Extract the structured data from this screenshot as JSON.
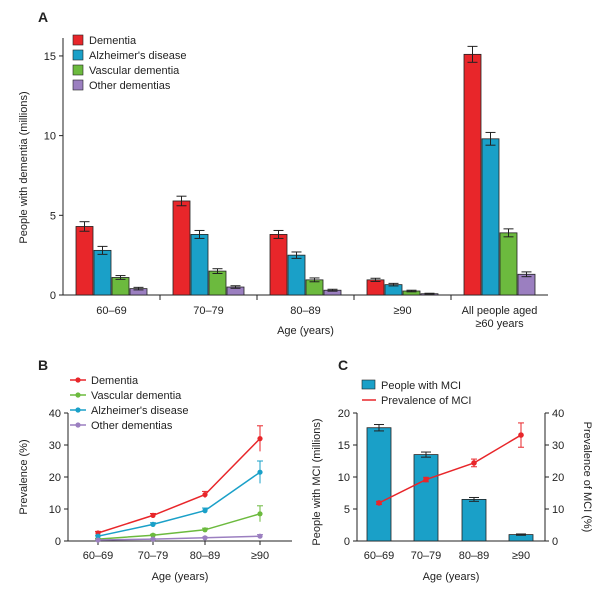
{
  "panel_labels": {
    "a": "A",
    "b": "B",
    "c": "C"
  },
  "colors": {
    "dementia": "#e8262a",
    "alzheimers": "#1aa0c8",
    "vascular": "#6cba3e",
    "other": "#9b7fc0",
    "mci_bar": "#1aa0c8",
    "mci_line": "#e8262a"
  },
  "chart_data": [
    {
      "id": "A",
      "type": "bar",
      "ylabel": "People with dementia (millions)",
      "xlabel": "Age (years)",
      "ylim": [
        0,
        16
      ],
      "yticks": [
        "0",
        "5",
        "10",
        "15"
      ],
      "categories": [
        "60–69",
        "70–79",
        "80–89",
        "≥90",
        "All people aged|≥60 years"
      ],
      "series": [
        {
          "name": "Dementia",
          "values": [
            4.3,
            5.9,
            3.8,
            0.95,
            15.1
          ],
          "errors": [
            0.3,
            0.3,
            0.25,
            0.1,
            0.5
          ]
        },
        {
          "name": "Alzheimer's disease",
          "values": [
            2.8,
            3.8,
            2.5,
            0.65,
            9.8
          ],
          "errors": [
            0.25,
            0.25,
            0.2,
            0.08,
            0.4
          ]
        },
        {
          "name": "Vascular dementia",
          "values": [
            1.1,
            1.5,
            0.95,
            0.25,
            3.9
          ],
          "errors": [
            0.12,
            0.15,
            0.12,
            0.05,
            0.25
          ]
        },
        {
          "name": "Other dementias",
          "values": [
            0.4,
            0.5,
            0.3,
            0.08,
            1.3
          ],
          "errors": [
            0.08,
            0.08,
            0.06,
            0.03,
            0.15
          ]
        }
      ],
      "legend_position": "top-left"
    },
    {
      "id": "B",
      "type": "line",
      "ylabel": "Prevalence (%)",
      "xlabel": "Age (years)",
      "ylim": [
        0,
        40
      ],
      "yticks": [
        "0",
        "10",
        "20",
        "30",
        "40"
      ],
      "categories": [
        "60–69",
        "70–79",
        "80–89",
        "≥90"
      ],
      "series": [
        {
          "name": "Dementia",
          "values": [
            2.5,
            8.0,
            14.5,
            32.0
          ],
          "errors": [
            0.5,
            0.6,
            1.0,
            4.0
          ]
        },
        {
          "name": "Vascular dementia",
          "values": [
            0.6,
            1.8,
            3.5,
            8.5
          ],
          "errors": [
            0.2,
            0.3,
            0.5,
            2.5
          ]
        },
        {
          "name": "Alzheimer's disease",
          "values": [
            1.5,
            5.2,
            9.5,
            21.5
          ],
          "errors": [
            0.3,
            0.5,
            0.8,
            3.5
          ]
        },
        {
          "name": "Other dementias",
          "values": [
            0.3,
            0.6,
            1.0,
            1.5
          ],
          "errors": [
            0.1,
            0.1,
            0.2,
            0.5
          ]
        }
      ],
      "legend_position": "top-left"
    },
    {
      "id": "C",
      "type": "bar",
      "ylabel": "People with MCI (millions)",
      "y2label": "Prevalence of MCI (%)",
      "xlabel": "Age (years)",
      "ylim": [
        0,
        20
      ],
      "y2lim": [
        0,
        40
      ],
      "yticks": [
        "0",
        "5",
        "10",
        "15",
        "20"
      ],
      "y2ticks": [
        "0",
        "10",
        "20",
        "30",
        "40"
      ],
      "categories": [
        "60–69",
        "70–79",
        "80–89",
        "≥90"
      ],
      "bars": {
        "name": "People with MCI",
        "values": [
          17.7,
          13.5,
          6.5,
          1.0
        ],
        "errors": [
          0.5,
          0.4,
          0.3,
          0.1
        ]
      },
      "line": {
        "name": "Prevalence of MCI",
        "values": [
          11.9,
          19.2,
          24.4,
          33.1
        ],
        "errors": [
          0.5,
          0.7,
          1.2,
          3.8
        ]
      },
      "legend_position": "top"
    }
  ]
}
